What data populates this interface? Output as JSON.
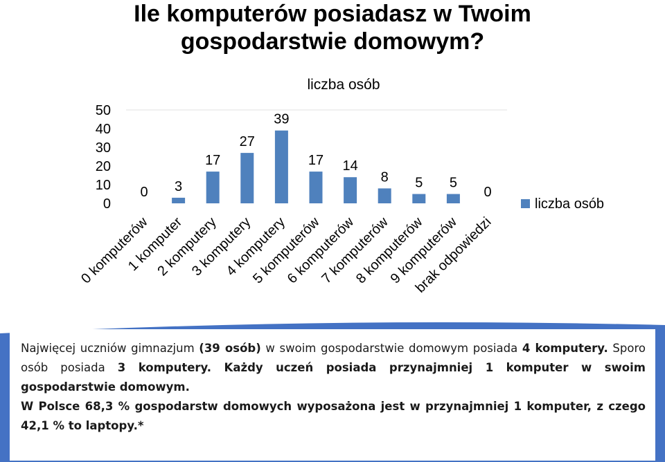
{
  "chart_data": {
    "type": "bar",
    "title": "Ile komputerów posiadasz w Twoim gospodarstwie domowym?",
    "subtitle": "liczba osób",
    "categories": [
      "0 komputerów",
      "1 komputer",
      "2 komputery",
      "3 komputery",
      "4 komputery",
      "5 komputerów",
      "6 komputerów",
      "7 komputerów",
      "8 komputerów",
      "9 komputerów",
      "brak odpowiedzi"
    ],
    "series": [
      {
        "name": "liczba osób",
        "values": [
          0,
          3,
          17,
          27,
          39,
          17,
          14,
          8,
          5,
          5,
          0
        ]
      }
    ],
    "ylim": [
      0,
      50
    ],
    "yticks": [
      0,
      10,
      20,
      30,
      40,
      50
    ],
    "grid": false,
    "legend": "right",
    "bar_color": "#4f81bd"
  },
  "text": {
    "p1_a": "Najwięcej uczniów gimnazjum ",
    "p1_b": "(39 osób)",
    "p1_c": " w swoim gospodarstwie domowym posiada ",
    "p1_d": "4 komputery.",
    "p1_e": " Sporo osób posiada ",
    "p1_f": "3 komputery. Każdy uczeń posiada przynajmniej 1 komputer w swoim gospodarstwie domowym.",
    "p2": "W Polsce 68,3 % gospodarstw domowych wyposażona jest w przynajmniej 1 komputer, z czego 42,1 % to laptopy.*"
  },
  "panel_color": "#4472c4"
}
